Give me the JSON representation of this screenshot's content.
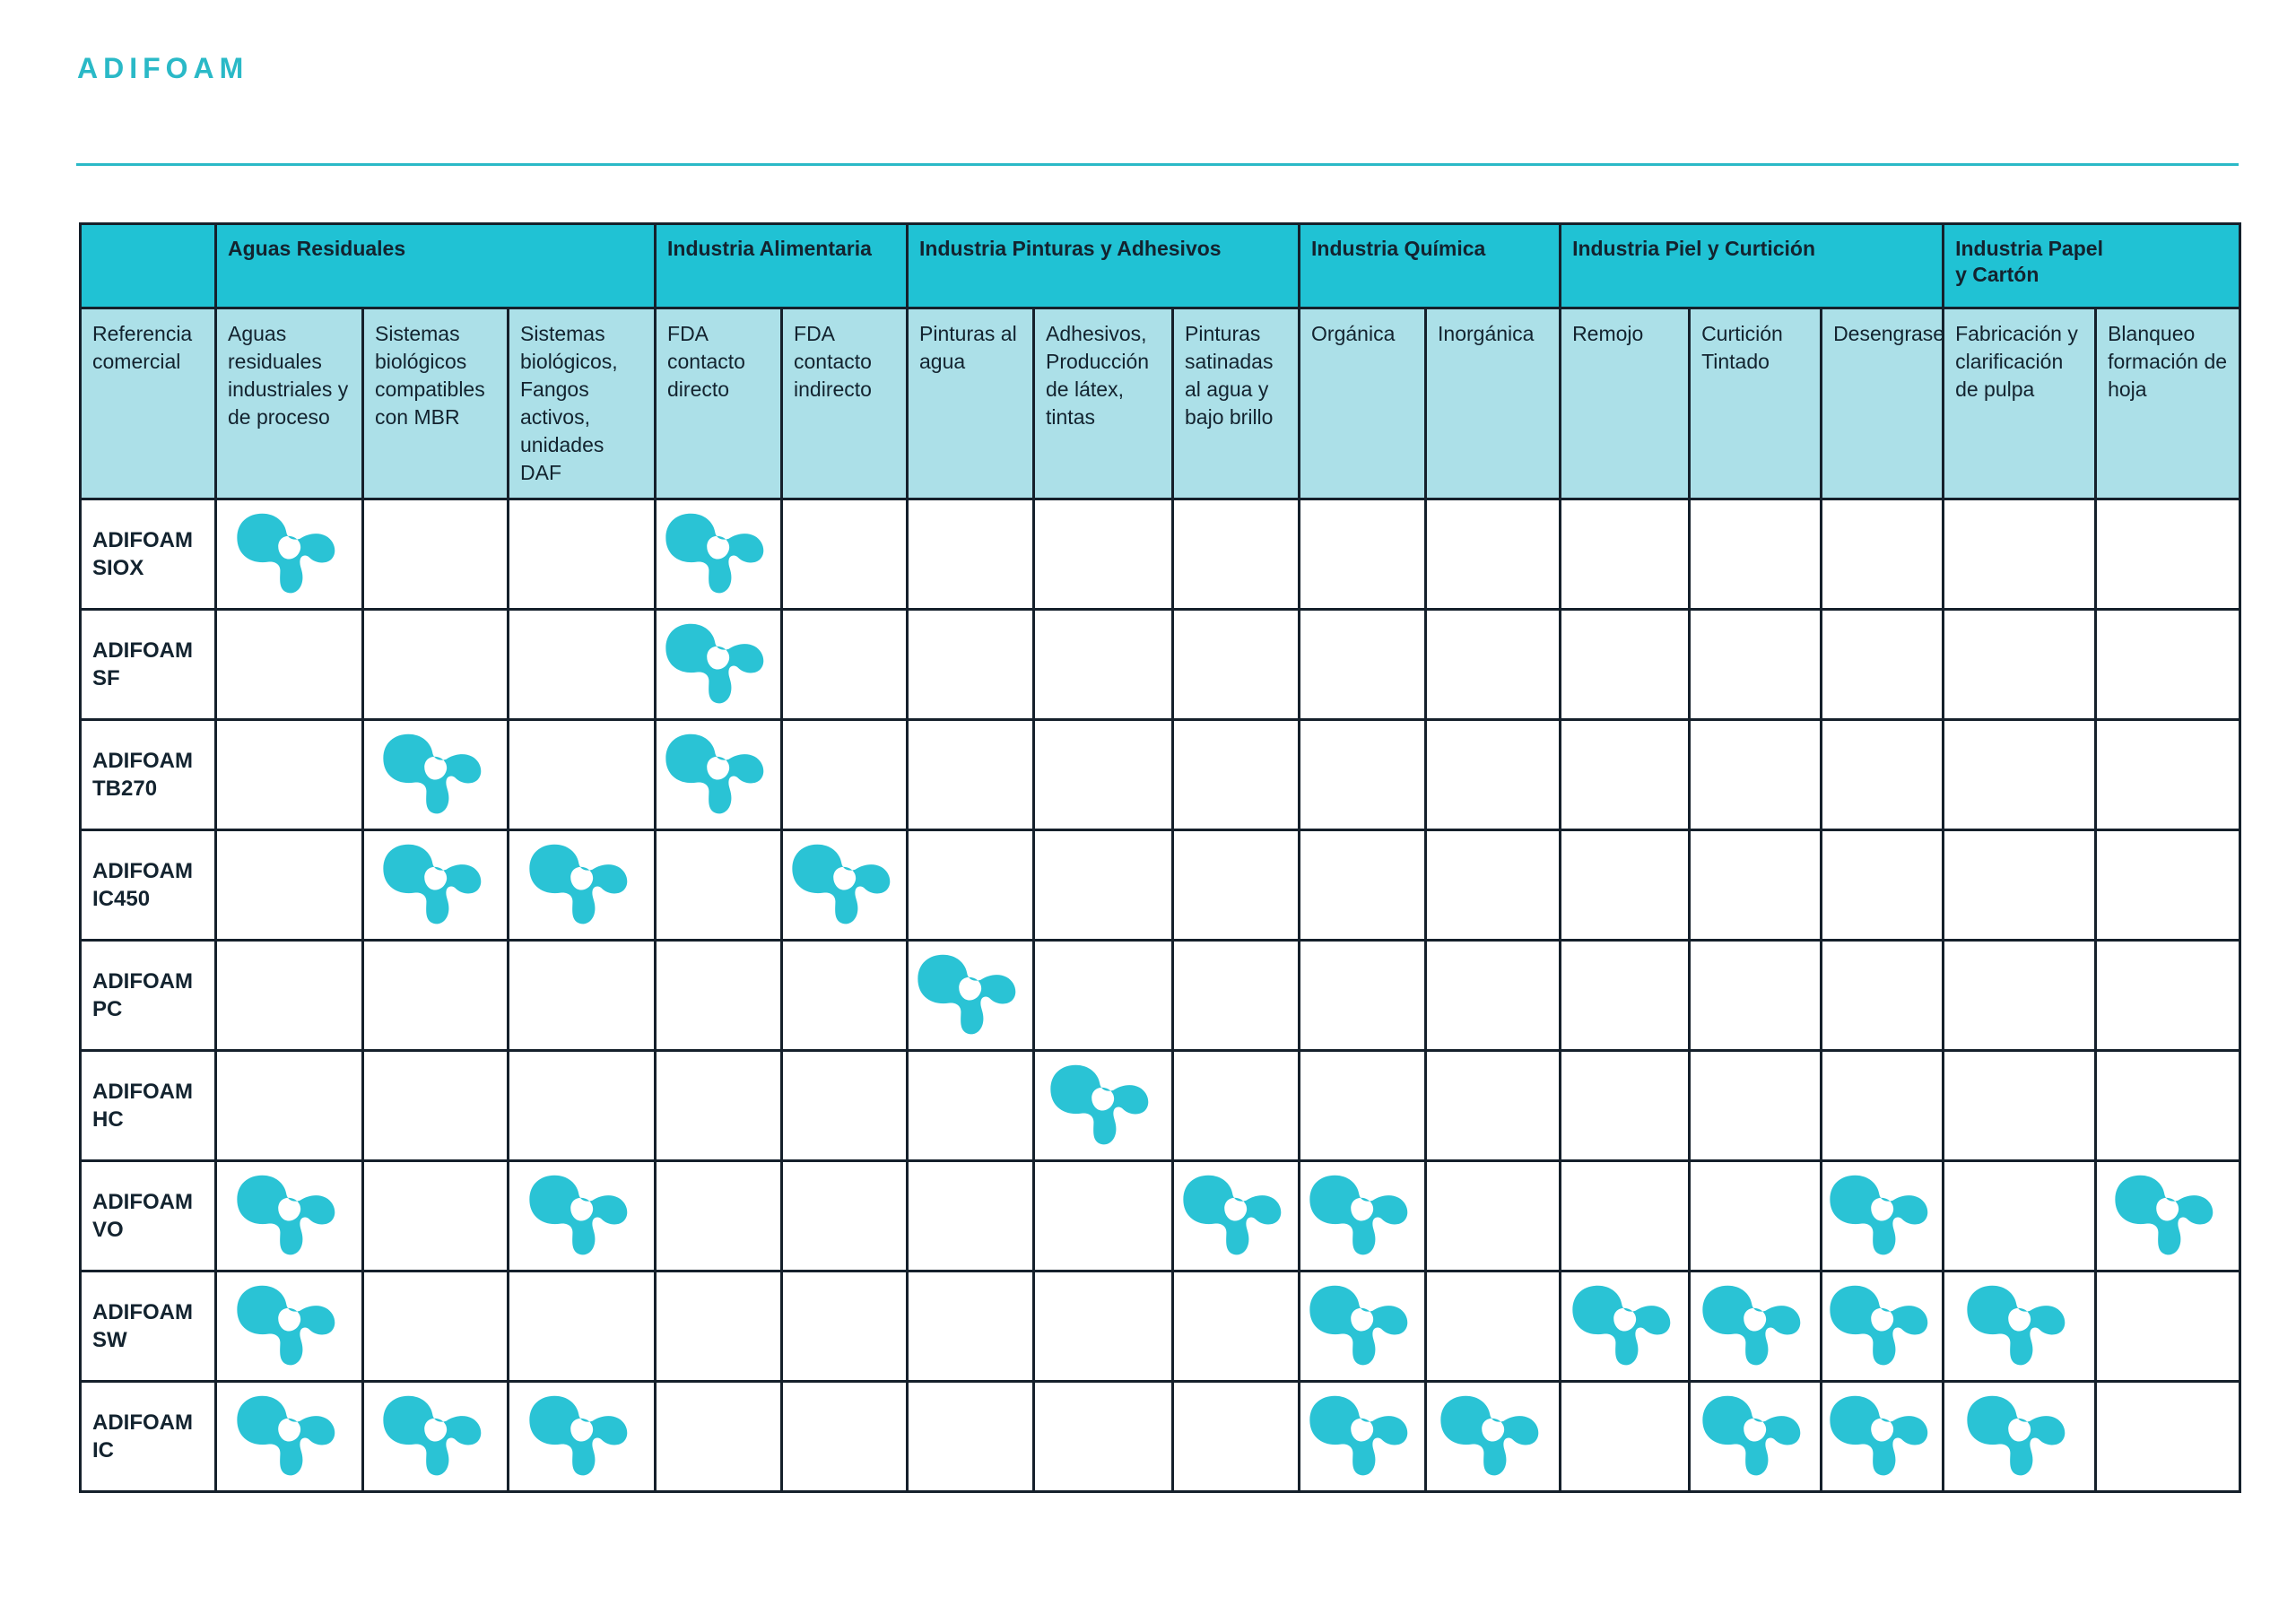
{
  "page": {
    "title": "ADIFOAM"
  },
  "colors": {
    "accent": "#2ab9c7",
    "header_dark": "#20c2d4",
    "header_light": "#ace0e8",
    "icon_teal": "#2ac3d5",
    "border": "#15202b",
    "text": "#13232f"
  },
  "table": {
    "row_header_label": "Referencia comercial",
    "mark_icon_name": "adifoam-blob-logo",
    "groups": [
      {
        "label": "Aguas Residuales",
        "span": 3
      },
      {
        "label": "Industria Alimentaria",
        "span": 2
      },
      {
        "label": "Industria Pinturas y Adhesivos",
        "span": 3
      },
      {
        "label": "Industria Química",
        "span": 2
      },
      {
        "label": "Industria Piel y Curtición",
        "span": 3
      },
      {
        "label": "Industria Papel\ny Cartón",
        "span": 2
      }
    ],
    "columns": [
      "Aguas residuales industriales y de proceso",
      "Sistemas biológicos compatibles con MBR",
      "Sistemas biológicos, Fangos activos, unidades DAF",
      "FDA contacto directo",
      "FDA contacto indirecto",
      "Pinturas al agua",
      "Adhesivos, Producción de látex, tintas",
      "Pinturas satinadas al agua y bajo brillo",
      "Orgánica",
      "Inorgánica",
      "Remojo",
      "Curtición\nTintado",
      "Desengrase",
      "Fabricación y clarificación de pulpa",
      "Blanqueo formación de hoja"
    ],
    "rows": [
      {
        "product": "ADIFOAM SIOX",
        "marks": [
          0,
          3
        ]
      },
      {
        "product": "ADIFOAM SF",
        "marks": [
          3
        ]
      },
      {
        "product": "ADIFOAM TB270",
        "marks": [
          1,
          3
        ]
      },
      {
        "product": "ADIFOAM IC450",
        "marks": [
          1,
          2,
          4
        ]
      },
      {
        "product": "ADIFOAM PC",
        "marks": [
          5
        ]
      },
      {
        "product": "ADIFOAM HC",
        "marks": [
          6
        ]
      },
      {
        "product": "ADIFOAM VO",
        "marks": [
          0,
          2,
          7,
          8,
          12,
          14
        ]
      },
      {
        "product": "ADIFOAM SW",
        "marks": [
          0,
          8,
          10,
          11,
          12,
          13
        ]
      },
      {
        "product": "ADIFOAM IC",
        "marks": [
          0,
          1,
          2,
          8,
          9,
          11,
          12,
          13
        ]
      }
    ]
  }
}
